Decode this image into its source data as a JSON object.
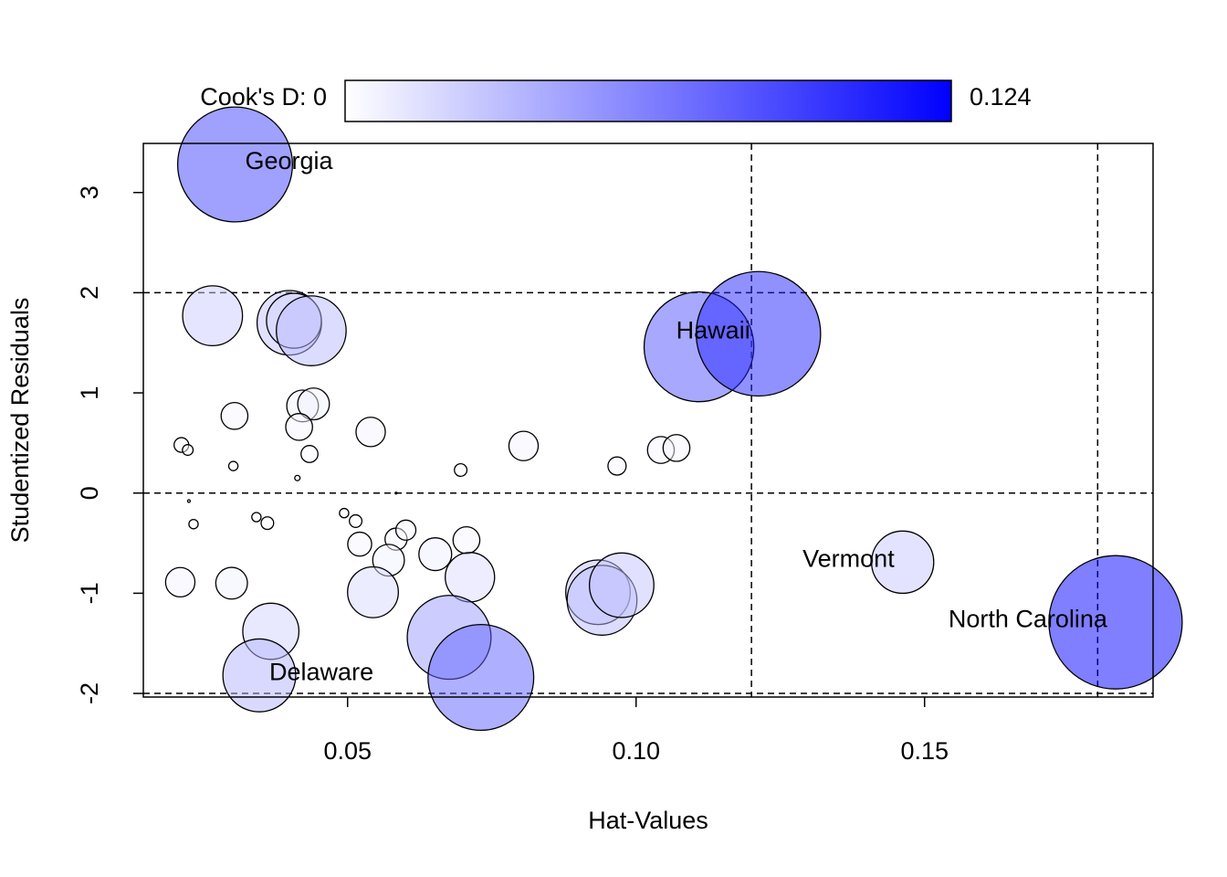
{
  "chart_data": {
    "type": "scatter",
    "xlabel": "Hat-Values",
    "ylabel": "Studentized Residuals",
    "colorbar_label": "Cook's D:",
    "colorbar_lim": [
      0,
      0.124
    ],
    "color": "#0000ff",
    "xlim": [
      0.0146,
      0.1896
    ],
    "ylim": [
      -2.036,
      3.49
    ],
    "xticks": [
      0.05,
      {
        "value": 0.1,
        "label": "0.10"
      },
      0.15
    ],
    "yticks": [
      -2,
      -1,
      0,
      1,
      2,
      3
    ],
    "hlines": [
      -2,
      0,
      2
    ],
    "vlines": [
      0.12,
      0.18
    ],
    "series": [
      {
        "name": "Cook's D",
        "x": [
          0.0305,
          0.0266,
          0.0399,
          0.0407,
          0.0437,
          0.1109,
          0.1212,
          0.0304,
          0.0422,
          0.0441,
          0.0416,
          0.0434,
          0.0212,
          0.0223,
          0.0302,
          0.0413,
          0.054,
          0.0696,
          0.0805,
          0.0967,
          0.1043,
          0.107,
          0.0225,
          0.0233,
          0.0342,
          0.0361,
          0.0494,
          0.0514,
          0.0584,
          0.0521,
          0.0584,
          0.0601,
          0.0571,
          0.0652,
          0.0706,
          0.0712,
          0.021,
          0.0299,
          0.0544,
          0.0367,
          0.0347,
          0.0676,
          0.0731,
          0.0934,
          0.0941,
          0.0975,
          0.1462,
          0.1831
        ],
        "values": [
          3.28,
          1.77,
          1.7,
          1.72,
          1.62,
          1.46,
          1.59,
          0.77,
          0.87,
          0.89,
          0.66,
          0.39,
          0.48,
          0.43,
          0.27,
          0.15,
          0.61,
          0.23,
          0.47,
          0.27,
          0.43,
          0.45,
          -0.08,
          -0.31,
          -0.24,
          -0.3,
          -0.2,
          -0.28,
          0,
          -0.51,
          -0.46,
          -0.37,
          -0.67,
          -0.61,
          -0.47,
          -0.84,
          -0.89,
          -0.9,
          -0.99,
          -1.38,
          -1.82,
          -1.44,
          -1.84,
          -0.99,
          -1.07,
          -0.92,
          -0.69,
          -1.29
        ],
        "sizes": [
          0.092,
          0.025,
          0.029,
          0.021,
          0.034,
          0.084,
          0.108,
          0.005,
          0.007,
          0.007,
          0.005,
          0.002,
          0.0015,
          0.0008,
          0.0006,
          0.0002,
          0.006,
          0.0011,
          0.006,
          0.0023,
          0.005,
          0.005,
          5e-05,
          0.0006,
          0.0006,
          0.0011,
          0.0006,
          0.0011,
          2e-05,
          0.004,
          0.0034,
          0.0028,
          0.007,
          0.0075,
          0.005,
          0.017,
          0.006,
          0.007,
          0.018,
          0.022,
          0.037,
          0.049,
          0.078,
          0.029,
          0.034,
          0.029,
          0.027,
          0.124
        ],
        "point_labels": [
          "Georgia",
          null,
          null,
          null,
          null,
          null,
          "Hawaii",
          null,
          null,
          null,
          null,
          null,
          null,
          null,
          null,
          null,
          null,
          null,
          null,
          null,
          null,
          null,
          null,
          null,
          null,
          null,
          null,
          null,
          null,
          null,
          null,
          null,
          null,
          null,
          null,
          null,
          null,
          null,
          null,
          null,
          "Delaware",
          null,
          null,
          null,
          null,
          null,
          "Vermont",
          "North Carolina"
        ]
      }
    ]
  }
}
